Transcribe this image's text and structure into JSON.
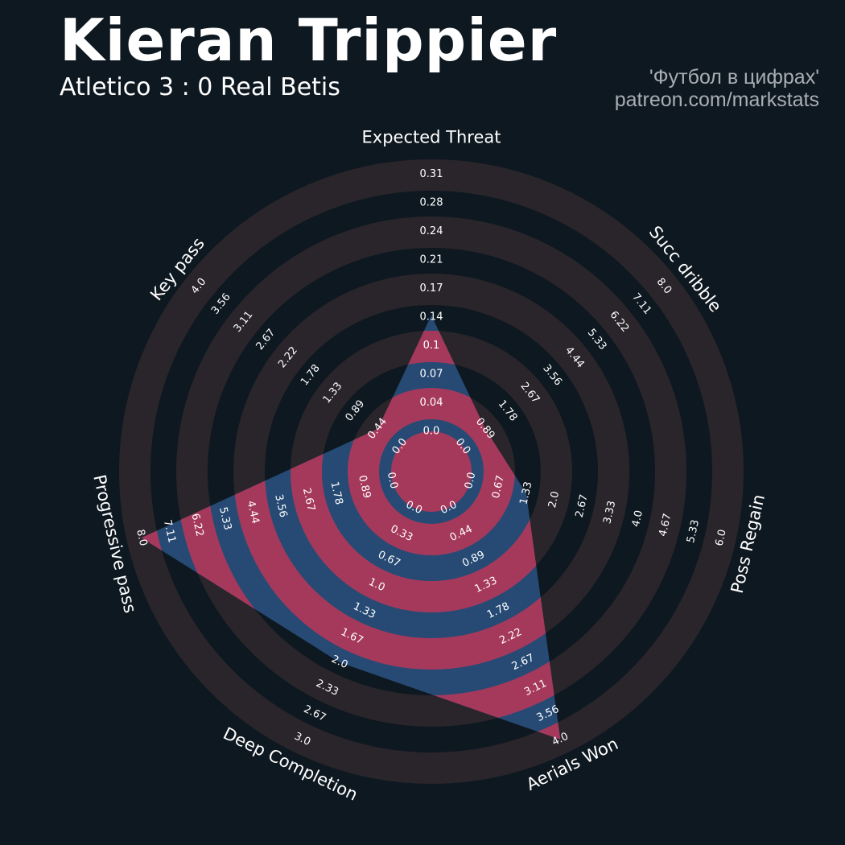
{
  "header": {
    "player_name": "Kieran Trippier",
    "match": "Atletico 3 : 0 Real Betis",
    "credit_line1": "'Футбол в цифрах'",
    "credit_line2": "patreon.com/markstats"
  },
  "colors": {
    "background": "#0e1820",
    "ring_band": "#29252b",
    "fill_blue": "#264a74",
    "fill_pink": "#a5395c",
    "text": "#ffffff"
  },
  "chart_data": {
    "type": "radar",
    "params": [
      {
        "name": "Expected Threat",
        "ticks": [
          "0.0",
          "0.04",
          "0.07",
          "0.1",
          "0.14",
          "0.17",
          "0.21",
          "0.24",
          "0.28",
          "0.31"
        ],
        "value": 0.14
      },
      {
        "name": "Succ dribble",
        "ticks": [
          "0.0",
          "0.89",
          "1.78",
          "2.67",
          "3.56",
          "4.44",
          "5.33",
          "6.22",
          "7.11",
          "8.0"
        ],
        "value": 0.89
      },
      {
        "name": "Poss Regain",
        "ticks": [
          "0.0",
          "0.67",
          "1.33",
          "2.0",
          "2.67",
          "3.33",
          "4.0",
          "4.67",
          "5.33",
          "6.0"
        ],
        "value": 1.33
      },
      {
        "name": "Aerials Won",
        "ticks": [
          "0.0",
          "0.44",
          "0.89",
          "1.33",
          "1.78",
          "2.22",
          "2.67",
          "3.11",
          "3.56",
          "4.0"
        ],
        "value": 4.0
      },
      {
        "name": "Deep Completion",
        "ticks": [
          "0.0",
          "0.33",
          "0.67",
          "1.0",
          "1.33",
          "1.67",
          "2.0",
          "2.33",
          "2.67",
          "3.0"
        ],
        "value": 2.0
      },
      {
        "name": "Progressive pass",
        "ticks": [
          "0.0",
          "0.89",
          "1.78",
          "2.67",
          "3.56",
          "4.44",
          "5.33",
          "6.22",
          "7.11",
          "8.0"
        ],
        "value": 8.0
      },
      {
        "name": "Key pass",
        "ticks": [
          "0.0",
          "0.44",
          "0.89",
          "1.33",
          "1.78",
          "2.22",
          "2.67",
          "3.11",
          "3.56",
          "4.0"
        ],
        "value": 0.44
      }
    ]
  }
}
